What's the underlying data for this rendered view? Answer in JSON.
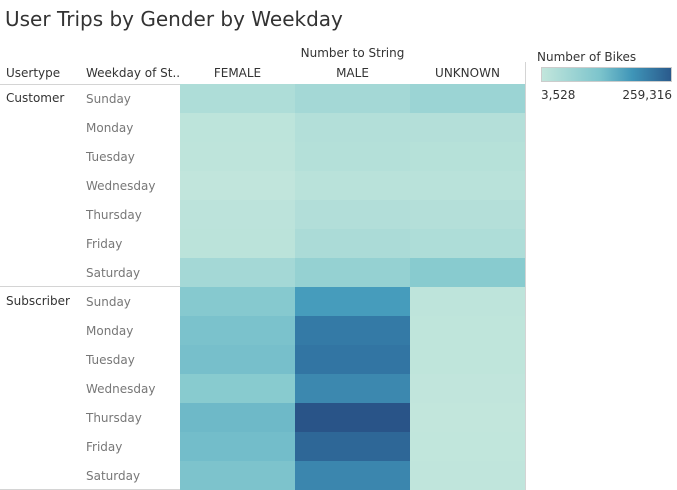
{
  "header": {
    "title": "User Trips by Gender by Weekday",
    "column_group_label": "Number to String",
    "row_header_1": "Usertype",
    "row_header_2": "Weekday of St.."
  },
  "legend": {
    "title": "Number of Bikes",
    "min_label": "3,528",
    "max_label": "259,316",
    "color_low": "#c2e6dc",
    "color_high": "#2a5a8c"
  },
  "chart_data": {
    "type": "heatmap",
    "title": "User Trips by Gender by Weekday",
    "columns": [
      "FEMALE",
      "MALE",
      "UNKNOWN"
    ],
    "color_range": [
      3528,
      259316
    ],
    "groups": [
      {
        "name": "Customer",
        "rows": [
          {
            "weekday": "Sunday",
            "values": [
              26000,
              38000,
              48000
            ]
          },
          {
            "weekday": "Monday",
            "values": [
              9000,
              21000,
              20000
            ]
          },
          {
            "weekday": "Tuesday",
            "values": [
              8000,
              19000,
              17000
            ]
          },
          {
            "weekday": "Wednesday",
            "values": [
              5000,
              14000,
              14000
            ]
          },
          {
            "weekday": "Thursday",
            "values": [
              10000,
              22000,
              20000
            ]
          },
          {
            "weekday": "Friday",
            "values": [
              12000,
              30000,
              26000
            ]
          },
          {
            "weekday": "Saturday",
            "values": [
              38000,
              55000,
              70000
            ]
          }
        ]
      },
      {
        "name": "Subscriber",
        "rows": [
          {
            "weekday": "Sunday",
            "values": [
              72000,
              150000,
              8000
            ]
          },
          {
            "weekday": "Monday",
            "values": [
              85000,
              205000,
              7000
            ]
          },
          {
            "weekday": "Tuesday",
            "values": [
              90000,
              212000,
              7000
            ]
          },
          {
            "weekday": "Wednesday",
            "values": [
              70000,
              182000,
              5000
            ]
          },
          {
            "weekday": "Thursday",
            "values": [
              100000,
              259316,
              4000
            ]
          },
          {
            "weekday": "Friday",
            "values": [
              94000,
              232000,
              4500
            ]
          },
          {
            "weekday": "Saturday",
            "values": [
              83000,
              185000,
              5500
            ]
          }
        ]
      }
    ]
  }
}
